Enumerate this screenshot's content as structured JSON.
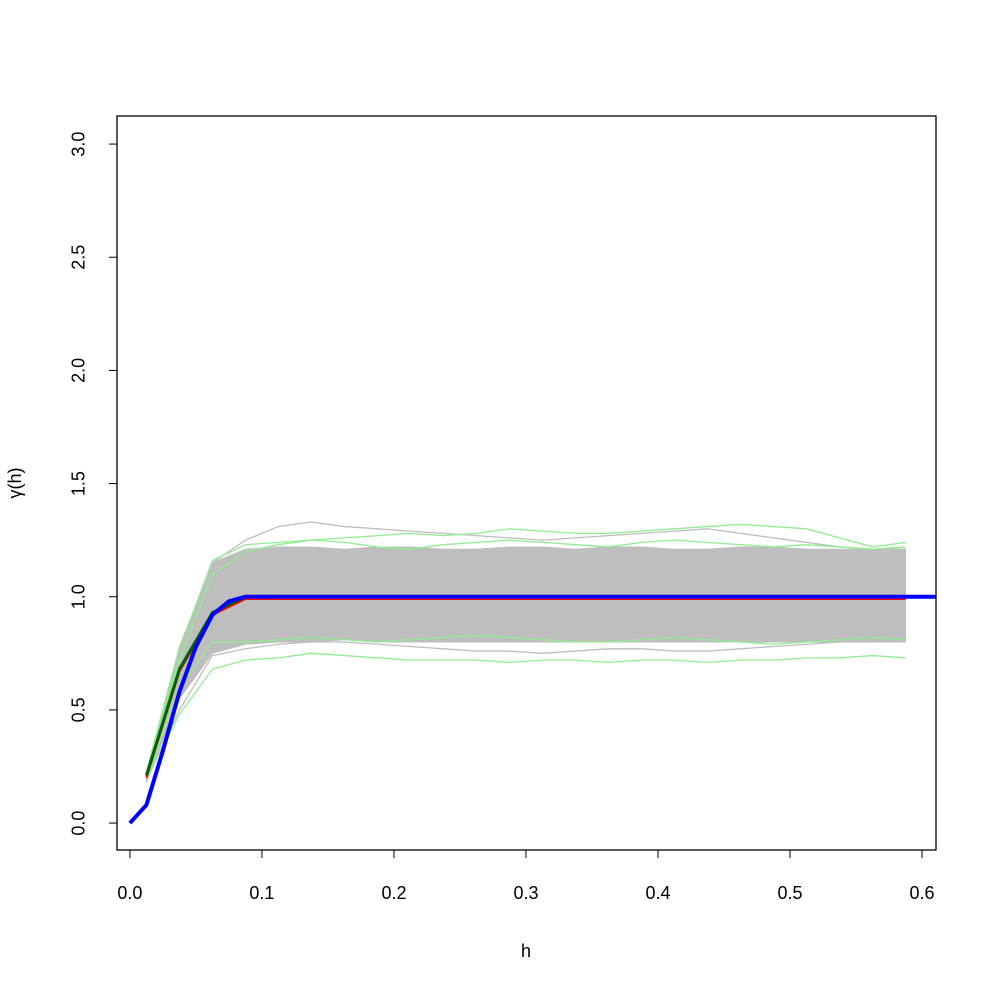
{
  "chart_data": {
    "type": "line",
    "x_label": "h",
    "y_label": "γ(h)",
    "x": [
      0.0125,
      0.0375,
      0.0625,
      0.0875,
      0.1125,
      0.1375,
      0.1625,
      0.1875,
      0.2125,
      0.2375,
      0.2625,
      0.2875,
      0.3125,
      0.3375,
      0.3625,
      0.3875,
      0.4125,
      0.4375,
      0.4625,
      0.4875,
      0.5125,
      0.5375,
      0.5625,
      0.5875
    ],
    "xlim": [
      -0.0098,
      0.6106
    ],
    "ylim": [
      -0.119,
      3.124
    ],
    "xticks": [
      {
        "value": 0,
        "label": "0.0"
      },
      0.1,
      0.2,
      0.3,
      0.4,
      0.5,
      0.6
    ],
    "yticks": [
      {
        "value": 0,
        "label": "0.0"
      },
      0.5,
      {
        "value": 1,
        "label": "1.0"
      },
      1.5,
      {
        "value": 2,
        "label": "2.0"
      },
      2.5,
      {
        "value": 3,
        "label": "3.0"
      }
    ],
    "envelope": {
      "color": "#bebebe",
      "upper": [
        0.23,
        0.78,
        1.15,
        1.21,
        1.22,
        1.22,
        1.21,
        1.22,
        1.22,
        1.21,
        1.21,
        1.22,
        1.22,
        1.21,
        1.22,
        1.22,
        1.21,
        1.21,
        1.22,
        1.22,
        1.21,
        1.21,
        1.21,
        1.21
      ],
      "lower": [
        0.18,
        0.55,
        0.75,
        0.79,
        0.8,
        0.8,
        0.81,
        0.8,
        0.8,
        0.8,
        0.8,
        0.8,
        0.8,
        0.8,
        0.8,
        0.8,
        0.8,
        0.8,
        0.8,
        0.8,
        0.8,
        0.8,
        0.8,
        0.8
      ]
    },
    "series": [
      {
        "color": "#bebebe",
        "width": 1.3,
        "values": [
          0.22,
          0.75,
          1.15,
          1.25,
          1.31,
          1.33,
          1.31,
          1.3,
          1.29,
          1.28,
          1.27,
          1.26,
          1.25,
          1.26,
          1.27,
          1.28,
          1.29,
          1.3,
          1.28,
          1.26,
          1.24,
          1.22,
          1.21,
          1.21
        ]
      },
      {
        "color": "#bebebe",
        "width": 1.3,
        "values": [
          0.19,
          0.5,
          0.74,
          0.77,
          0.79,
          0.8,
          0.8,
          0.79,
          0.78,
          0.77,
          0.76,
          0.76,
          0.75,
          0.76,
          0.77,
          0.77,
          0.76,
          0.76,
          0.77,
          0.78,
          0.79,
          0.8,
          0.8,
          0.81
        ]
      },
      {
        "color": "#90ee90",
        "width": 1.3,
        "values": [
          0.2,
          0.48,
          0.68,
          0.72,
          0.73,
          0.75,
          0.74,
          0.73,
          0.72,
          0.72,
          0.72,
          0.71,
          0.72,
          0.72,
          0.71,
          0.72,
          0.72,
          0.71,
          0.72,
          0.72,
          0.73,
          0.73,
          0.74,
          0.73
        ]
      },
      {
        "color": "#90ee90",
        "width": 1.3,
        "values": [
          0.22,
          0.77,
          1.16,
          1.23,
          1.24,
          1.25,
          1.26,
          1.27,
          1.28,
          1.27,
          1.28,
          1.3,
          1.29,
          1.28,
          1.28,
          1.29,
          1.3,
          1.31,
          1.32,
          1.31,
          1.3,
          1.26,
          1.22,
          1.24
        ]
      },
      {
        "color": "#90ee90",
        "width": 1.3,
        "values": [
          0.21,
          0.72,
          1.1,
          1.2,
          1.23,
          1.25,
          1.24,
          1.22,
          1.21,
          1.23,
          1.24,
          1.25,
          1.24,
          1.23,
          1.22,
          1.24,
          1.25,
          1.24,
          1.23,
          1.22,
          1.23,
          1.22,
          1.21,
          1.22
        ]
      },
      {
        "color": "#90ee90",
        "width": 1.3,
        "values": [
          0.2,
          0.6,
          0.8,
          0.8,
          0.81,
          0.82,
          0.81,
          0.8,
          0.81,
          0.82,
          0.83,
          0.82,
          0.81,
          0.8,
          0.8,
          0.81,
          0.82,
          0.81,
          0.8,
          0.79,
          0.8,
          0.81,
          0.82,
          0.81
        ]
      },
      {
        "color": "#ff0000",
        "width": 2,
        "values": [
          0.2,
          0.67,
          0.92,
          0.99,
          0.99,
          0.99,
          0.99,
          0.99,
          0.99,
          0.99,
          0.99,
          0.99,
          0.99,
          0.99,
          0.99,
          0.99,
          0.99,
          0.99,
          0.99,
          0.99,
          0.99,
          0.99,
          0.99,
          0.99
        ]
      },
      {
        "color": "#006400",
        "width": 3,
        "values": [
          0.21,
          0.68,
          0.93,
          1.0,
          1.0,
          1.0,
          1.0,
          1.0,
          1.0,
          1.0,
          1.0,
          1.0,
          1.0,
          1.0,
          1.0,
          1.0,
          1.0,
          1.0,
          1.0,
          1.0,
          1.0,
          1.0,
          1.0,
          1.0
        ]
      },
      {
        "color": "#0000ff",
        "width": 4,
        "x": [
          0,
          0.0125,
          0.025,
          0.0375,
          0.05,
          0.0625,
          0.075,
          0.0875,
          0.6106
        ],
        "values": [
          0,
          0.08,
          0.32,
          0.58,
          0.78,
          0.92,
          0.98,
          1.0,
          1.0
        ]
      }
    ]
  }
}
